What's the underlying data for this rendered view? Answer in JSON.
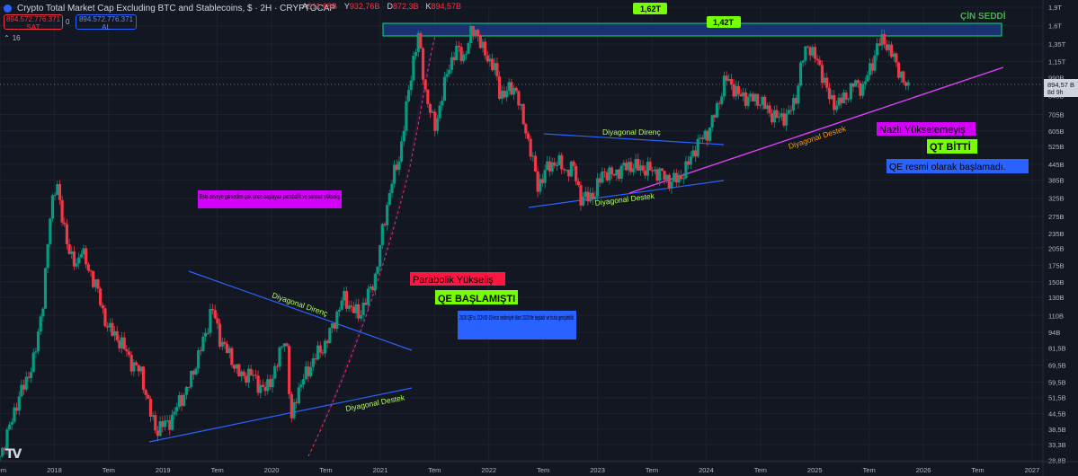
{
  "header": {
    "title": "Crypto Total Market Cap Excluding BTC and Stablecoins, $ · 2H · CRYPTOCAP",
    "ohlc": [
      {
        "k": "A",
        "v": "911,68B"
      },
      {
        "k": "Y",
        "v": "932,76B"
      },
      {
        "k": "D",
        "v": "872,3B"
      },
      {
        "k": "K",
        "v": "894,57B"
      }
    ]
  },
  "trade": {
    "sell_price": "894.572.776.371",
    "sell_label": "SAT",
    "spread": "0",
    "buy_price": "894.572.776.371",
    "buy_label": "AL"
  },
  "volume_label": "16",
  "price_tag": {
    "value": "894,57 B",
    "countdown": "8d 9h"
  },
  "logo": "TV",
  "colors": {
    "up": "#089981",
    "down": "#f23645",
    "background": "#131722",
    "trend_blue": "#2962ff",
    "trend_magenta": "#e040fb",
    "zone": "#1e3a8a"
  },
  "annotations": {
    "cin_seddi": "ÇİN SEDDİ",
    "label_162": "1,62T",
    "label_142": "1,42T",
    "parabolic_text": "Eski zirveye gitmeden çok önce başlayan parabolik ve sonsuz yükseliş",
    "parabolik": "Parabolik Yükseliş",
    "qe_basladi": "QE BAŞLAMIŞTI",
    "qe2020": "2020 QE'si, COVID-19 krizi nedeniyle Mart 2020'de başladı ve hızla genişletildi.",
    "diag_direnc_1": "Diyagonal Direnç",
    "diag_destek_1": "Diyagonal Destek",
    "diag_direnc_2": "Diyagonal Direnç",
    "diag_destek_2": "Diyagonal Destek",
    "diag_destek_3": "Diyagonal Destek",
    "nazli": "Nazlı Yükselemeyiş",
    "qt_bitti": "QT BİTTİ",
    "qe_resmi": "QE resmi olarak başlamadı."
  },
  "chart_data": {
    "type": "candlestick",
    "title": "Crypto Total Market Cap Excluding BTC and Stablecoins, $ · 2H · CRYPTOCAP",
    "y_scale": "log",
    "ylim": [
      28.5,
      1900
    ],
    "xlim": [
      2017.5,
      2027.1
    ],
    "y_ticks": [
      "1,9T",
      "1,6T",
      "1,35T",
      "1,15T",
      "990B",
      "840B",
      "705B",
      "605B",
      "525B",
      "445B",
      "385B",
      "325B",
      "275B",
      "235B",
      "205B",
      "175B",
      "150B",
      "130B",
      "110B",
      "94B",
      "81,5B",
      "69,5B",
      "59,5B",
      "51,5B",
      "44,5B",
      "38,5B",
      "33,3B",
      "28,8B"
    ],
    "y_tick_values": [
      1900,
      1600,
      1350,
      1150,
      990,
      840,
      705,
      605,
      525,
      445,
      385,
      325,
      275,
      235,
      205,
      175,
      150,
      130,
      110,
      94,
      81.5,
      69.5,
      59.5,
      51.5,
      44.5,
      38.5,
      33.3,
      28.8
    ],
    "x_ticks": [
      {
        "label": "Tem",
        "x": 2017.5
      },
      {
        "label": "2018",
        "x": 2018
      },
      {
        "label": "Tem",
        "x": 2018.5
      },
      {
        "label": "2019",
        "x": 2019
      },
      {
        "label": "Tem",
        "x": 2019.5
      },
      {
        "label": "2020",
        "x": 2020
      },
      {
        "label": "Tem",
        "x": 2020.5
      },
      {
        "label": "2021",
        "x": 2021
      },
      {
        "label": "Tem",
        "x": 2021.5
      },
      {
        "label": "2022",
        "x": 2022
      },
      {
        "label": "Tem",
        "x": 2022.5
      },
      {
        "label": "2023",
        "x": 2023
      },
      {
        "label": "Tem",
        "x": 2023.5
      },
      {
        "label": "2024",
        "x": 2024
      },
      {
        "label": "Tem",
        "x": 2024.5
      },
      {
        "label": "2025",
        "x": 2025
      },
      {
        "label": "Tem",
        "x": 2025.5
      },
      {
        "label": "2026",
        "x": 2026
      },
      {
        "label": "Tem",
        "x": 2026.5
      },
      {
        "label": "2027",
        "x": 2027
      }
    ],
    "series": [
      {
        "name": "Crypto Total Market Cap Excluding BTC and Stablecoins",
        "close_anchors": [
          [
            2017.5,
            30
          ],
          [
            2017.58,
            38
          ],
          [
            2017.66,
            50
          ],
          [
            2017.74,
            60
          ],
          [
            2017.82,
            75
          ],
          [
            2017.9,
            130
          ],
          [
            2017.97,
            300
          ],
          [
            2018.02,
            390
          ],
          [
            2018.06,
            280
          ],
          [
            2018.11,
            230
          ],
          [
            2018.15,
            190
          ],
          [
            2018.2,
            170
          ],
          [
            2018.25,
            210
          ],
          [
            2018.3,
            170
          ],
          [
            2018.38,
            150
          ],
          [
            2018.45,
            110
          ],
          [
            2018.52,
            95
          ],
          [
            2018.62,
            85
          ],
          [
            2018.72,
            70
          ],
          [
            2018.8,
            65
          ],
          [
            2018.88,
            45
          ],
          [
            2018.94,
            38
          ],
          [
            2019.0,
            40
          ],
          [
            2019.08,
            42
          ],
          [
            2019.15,
            50
          ],
          [
            2019.22,
            55
          ],
          [
            2019.3,
            70
          ],
          [
            2019.4,
            95
          ],
          [
            2019.45,
            120
          ],
          [
            2019.52,
            90
          ],
          [
            2019.62,
            75
          ],
          [
            2019.72,
            62
          ],
          [
            2019.8,
            65
          ],
          [
            2019.88,
            58
          ],
          [
            2019.95,
            55
          ],
          [
            2020.05,
            70
          ],
          [
            2020.13,
            95
          ],
          [
            2020.18,
            40
          ],
          [
            2020.22,
            52
          ],
          [
            2020.3,
            62
          ],
          [
            2020.4,
            75
          ],
          [
            2020.5,
            85
          ],
          [
            2020.58,
            105
          ],
          [
            2020.66,
            130
          ],
          [
            2020.72,
            120
          ],
          [
            2020.8,
            110
          ],
          [
            2020.88,
            130
          ],
          [
            2020.96,
            160
          ],
          [
            2021.02,
            240
          ],
          [
            2021.1,
            370
          ],
          [
            2021.18,
            480
          ],
          [
            2021.25,
            800
          ],
          [
            2021.3,
            1150
          ],
          [
            2021.35,
            1450
          ],
          [
            2021.42,
            850
          ],
          [
            2021.5,
            620
          ],
          [
            2021.56,
            800
          ],
          [
            2021.63,
            1100
          ],
          [
            2021.7,
            1280
          ],
          [
            2021.77,
            1200
          ],
          [
            2021.84,
            1500
          ],
          [
            2021.88,
            1550
          ],
          [
            2021.95,
            1250
          ],
          [
            2022.05,
            1100
          ],
          [
            2022.1,
            850
          ],
          [
            2022.18,
            880
          ],
          [
            2022.25,
            900
          ],
          [
            2022.3,
            700
          ],
          [
            2022.38,
            520
          ],
          [
            2022.45,
            360
          ],
          [
            2022.52,
            420
          ],
          [
            2022.62,
            460
          ],
          [
            2022.7,
            420
          ],
          [
            2022.78,
            430
          ],
          [
            2022.85,
            320
          ],
          [
            2022.92,
            330
          ],
          [
            2022.98,
            340
          ],
          [
            2023.05,
            420
          ],
          [
            2023.12,
            400
          ],
          [
            2023.2,
            420
          ],
          [
            2023.28,
            440
          ],
          [
            2023.4,
            430
          ],
          [
            2023.5,
            420
          ],
          [
            2023.58,
            410
          ],
          [
            2023.66,
            380
          ],
          [
            2023.75,
            390
          ],
          [
            2023.82,
            430
          ],
          [
            2023.88,
            500
          ],
          [
            2023.95,
            560
          ],
          [
            2024.02,
            600
          ],
          [
            2024.1,
            750
          ],
          [
            2024.18,
            990
          ],
          [
            2024.24,
            920
          ],
          [
            2024.3,
            840
          ],
          [
            2024.4,
            820
          ],
          [
            2024.5,
            800
          ],
          [
            2024.58,
            720
          ],
          [
            2024.66,
            680
          ],
          [
            2024.75,
            700
          ],
          [
            2024.82,
            800
          ],
          [
            2024.88,
            1150
          ],
          [
            2024.94,
            1350
          ],
          [
            2025.0,
            1200
          ],
          [
            2025.08,
            1000
          ],
          [
            2025.14,
            800
          ],
          [
            2025.2,
            780
          ],
          [
            2025.28,
            820
          ],
          [
            2025.36,
            940
          ],
          [
            2025.44,
            900
          ],
          [
            2025.52,
            1100
          ],
          [
            2025.58,
            1350
          ],
          [
            2025.64,
            1400
          ],
          [
            2025.7,
            1250
          ],
          [
            2025.76,
            1100
          ],
          [
            2025.8,
            1000
          ],
          [
            2025.84,
            900
          ],
          [
            2025.88,
            895
          ]
        ],
        "last": 894.57
      }
    ]
  }
}
